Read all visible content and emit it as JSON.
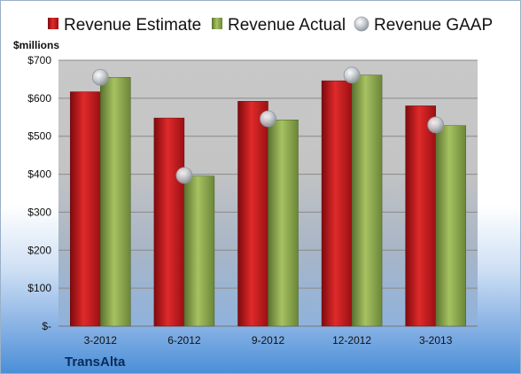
{
  "colors": {
    "estimate": "#c4161c",
    "actual": "#8aa84a",
    "gaap": "#b8bcc4"
  },
  "chart_data": {
    "type": "bar",
    "ylabel": "$millions",
    "ylim": [
      0,
      700
    ],
    "yticks": [
      0,
      100,
      200,
      300,
      400,
      500,
      600,
      700
    ],
    "ytick_labels": [
      "$-",
      "$100",
      "$200",
      "$300",
      "$400",
      "$500",
      "$600",
      "$700"
    ],
    "categories": [
      "3-2012",
      "6-2012",
      "9-2012",
      "12-2012",
      "3-2013"
    ],
    "series": [
      {
        "name": "Revenue Estimate",
        "kind": "bar",
        "values": [
          617,
          548,
          592,
          646,
          580
        ]
      },
      {
        "name": "Revenue Actual",
        "kind": "bar",
        "values": [
          655,
          395,
          543,
          661,
          528
        ]
      },
      {
        "name": "Revenue GAAP",
        "kind": "marker",
        "values": [
          655,
          397,
          546,
          661,
          530
        ]
      }
    ],
    "legend_position": "top",
    "grid": true
  },
  "footer": {
    "company": "TransAlta"
  }
}
